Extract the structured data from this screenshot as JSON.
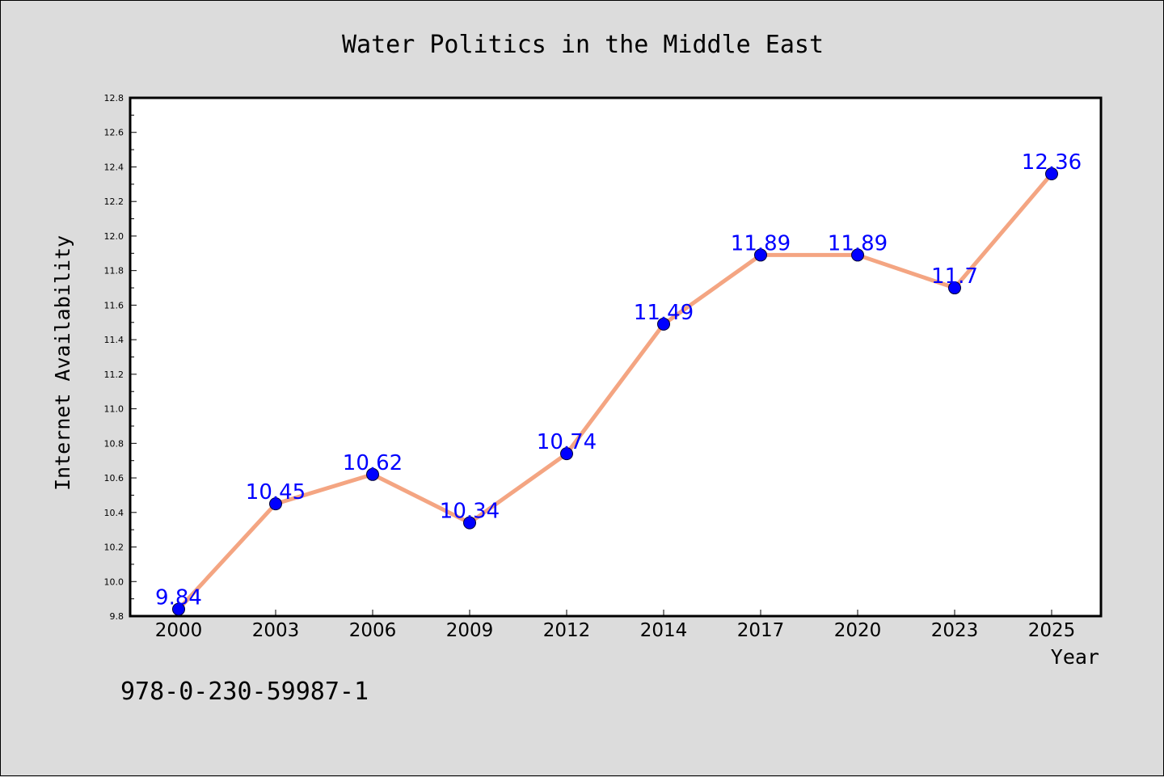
{
  "chart_data": {
    "type": "line",
    "title": "Water Politics in the Middle East",
    "xlabel": "Year",
    "ylabel": "Internet Availability",
    "categories": [
      "2000",
      "2003",
      "2006",
      "2009",
      "2012",
      "2014",
      "2017",
      "2020",
      "2023",
      "2025"
    ],
    "series": [
      {
        "values": [
          9.84,
          10.45,
          10.62,
          10.34,
          10.74,
          11.49,
          11.89,
          11.89,
          11.7,
          12.36
        ],
        "data_labels": [
          "9.84",
          "10.45",
          "10.62",
          "10.34",
          "10.74",
          "11.49",
          "11.89",
          "11.89",
          "11.7",
          "12.36"
        ]
      }
    ],
    "ylim": [
      9.8,
      12.8
    ],
    "yticks": [
      "9.8",
      "10.0",
      "10.2",
      "10.4",
      "10.6",
      "10.8",
      "11.0",
      "11.2",
      "11.4",
      "11.6",
      "11.8",
      "12.0",
      "12.2",
      "12.4",
      "12.6",
      "12.8"
    ],
    "grid": false,
    "colors": {
      "line": "#f4a582",
      "marker": "#0000ff",
      "data_label": "#0000ff",
      "background": "#dcdcdc",
      "plot_background": "#ffffff"
    }
  },
  "footer_code": "978-0-230-59987-1"
}
